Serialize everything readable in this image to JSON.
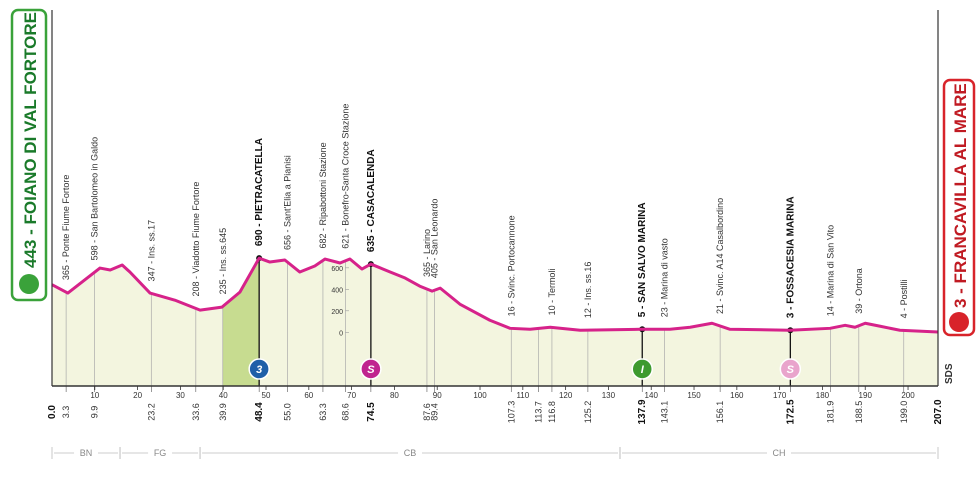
{
  "chart_data": {
    "type": "profile",
    "start": {
      "label": "443 - FOIANO DI VAL FORTORE",
      "km": {
        "value": 0,
        "label": "0.0"
      }
    },
    "finish": {
      "label": "3 - FRANCAVILLA AL MARE",
      "km": {
        "value": 207,
        "label": "207.0"
      }
    },
    "color": "#d6228a",
    "xlim": [
      0,
      207
    ],
    "xticks": [
      10,
      20,
      30,
      40,
      50,
      60,
      70,
      80,
      90,
      100,
      110,
      120,
      130,
      140,
      150,
      160,
      170,
      180,
      190,
      200
    ],
    "ylim": [
      -500,
      3000
    ],
    "yticks": [
      0,
      200,
      400,
      600
    ],
    "profile": {
      "x": [
        0,
        3.7,
        11.2,
        13.6,
        16.4,
        18.2,
        22.9,
        28.7,
        34.6,
        39.7,
        43.9,
        48.4,
        50.9,
        54.4,
        57.9,
        61.4,
        63.8,
        67.3,
        69.6,
        72.4,
        74.5,
        79,
        82.5,
        85.9,
        88.8,
        90.7,
        95.3,
        102.3,
        107,
        111.7,
        116.4,
        123.4,
        137.4,
        144.4,
        149.1,
        154.2,
        158.4,
        172.4,
        181.8,
        185.3,
        187.6,
        190,
        193.5,
        198.1,
        207
      ],
      "values": [
        443,
        365,
        598,
        580,
        626,
        561,
        365,
        299,
        206,
        234,
        374,
        690,
        654,
        673,
        561,
        617,
        682,
        645,
        682,
        589,
        635,
        561,
        505,
        430,
        383,
        411,
        262,
        112,
        37,
        28,
        47,
        19,
        28,
        28,
        47,
        84,
        28,
        19,
        37,
        65,
        47,
        84,
        56,
        19,
        3
      ]
    },
    "climb": [
      39.9,
      48.4
    ],
    "waypoints": [
      {
        "km": 3.3,
        "label": "365 - Ponte Fiume Fortore"
      },
      {
        "km": 9.9,
        "label": "598 - San Bartolomeo in Galdo"
      },
      {
        "km": 23.2,
        "label": "347 - Ins. ss.17"
      },
      {
        "km": 33.6,
        "label": "208 - Viadotto Fiume Fortore"
      },
      {
        "km": 39.9,
        "label": "235 - Ins. ss.645"
      },
      {
        "km": 48.4,
        "label": "690 - PIETRACATELLA",
        "badge": "3",
        "badge_color": "#1f5fa8"
      },
      {
        "km": {
          "value": 55,
          "label": "55.0"
        },
        "label": "656 - Sant'Elia a Pianisi"
      },
      {
        "km": 63.3,
        "label": "682 - Ripabottoni Stazione"
      },
      {
        "km": 68.6,
        "label": "621 - Bonefro-Santa Croce Stazione"
      },
      {
        "km": 74.5,
        "label": "635 - CASACALENDA",
        "badge": "S",
        "badge_color": "#c0248f"
      },
      {
        "km": 87.6,
        "label": "365 - Larino"
      },
      {
        "km": 89.4,
        "label": "405 - San Leonardo"
      },
      {
        "km": 107.3,
        "label": "16 - Svinc. Portocannone"
      },
      {
        "km": 113.7,
        "label": null
      },
      {
        "km": 116.8,
        "label": "10 - Termoli"
      },
      {
        "km": 125.2,
        "label": "12 - Ins. ss.16"
      },
      {
        "km": 137.9,
        "label": "5 - SAN SALVO MARINA",
        "badge": "I",
        "badge_color": "#3e9a2f"
      },
      {
        "km": 143.1,
        "label": "23 - Marina di vasto"
      },
      {
        "km": 156.1,
        "label": "21 - Svinc. A14 Casalbordino"
      },
      {
        "km": 172.5,
        "label": "3 - FOSSACESIA MARINA",
        "badge": "S",
        "badge_color": "#e9a4cc"
      },
      {
        "km": 181.9,
        "label": "14 - Marina di San Vito"
      },
      {
        "km": 188.5,
        "label": "39 - Ortona"
      },
      {
        "km": {
          "value": 199,
          "label": "199.0"
        },
        "label": "4 - Postilli"
      }
    ],
    "provinces": [
      {
        "name": "BN",
        "range": [
          0,
          15.9
        ]
      },
      {
        "name": "FG",
        "range": [
          15.9,
          34.6
        ]
      },
      {
        "name": "CB",
        "range": [
          34.6,
          132.7
        ]
      },
      {
        "name": "CH",
        "range": [
          132.7,
          207
        ]
      }
    ],
    "brand": "SDS"
  }
}
